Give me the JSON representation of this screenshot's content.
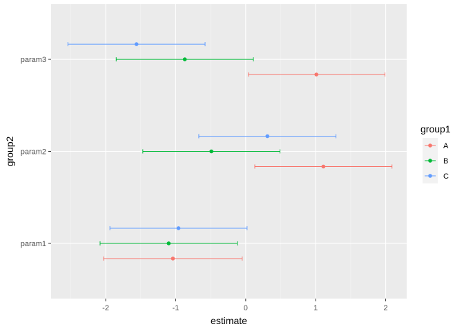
{
  "chart_data": {
    "type": "scatter",
    "subtype": "dodged point estimates with horizontal error bars",
    "xlabel": "estimate",
    "ylabel": "group2",
    "xlim": [
      -2.78,
      2.3
    ],
    "x_ticks": [
      -2,
      -1,
      0,
      1,
      2
    ],
    "x_tick_labels": [
      "-2",
      "-1",
      "0",
      "1",
      "2"
    ],
    "categories": [
      "param1",
      "param2",
      "param3"
    ],
    "grid": true,
    "legend": {
      "title": "group1",
      "position": "right",
      "entries": [
        "A",
        "B",
        "C"
      ]
    },
    "series": [
      {
        "name": "A",
        "color": "#F8766D",
        "points": [
          {
            "category": "param1",
            "estimate": -1.04,
            "low": -2.03,
            "high": -0.05
          },
          {
            "category": "param2",
            "estimate": 1.11,
            "low": 0.13,
            "high": 2.09
          },
          {
            "category": "param3",
            "estimate": 1.01,
            "low": 0.04,
            "high": 1.99
          }
        ]
      },
      {
        "name": "B",
        "color": "#00BA38",
        "points": [
          {
            "category": "param1",
            "estimate": -1.1,
            "low": -2.08,
            "high": -0.12
          },
          {
            "category": "param2",
            "estimate": -0.49,
            "low": -1.47,
            "high": 0.49
          },
          {
            "category": "param3",
            "estimate": -0.87,
            "low": -1.85,
            "high": 0.11
          }
        ]
      },
      {
        "name": "C",
        "color": "#619CFF",
        "points": [
          {
            "category": "param1",
            "estimate": -0.96,
            "low": -1.94,
            "high": 0.02
          },
          {
            "category": "param2",
            "estimate": 0.31,
            "low": -0.67,
            "high": 1.29
          },
          {
            "category": "param3",
            "estimate": -1.56,
            "low": -2.54,
            "high": -0.58
          }
        ]
      }
    ]
  }
}
